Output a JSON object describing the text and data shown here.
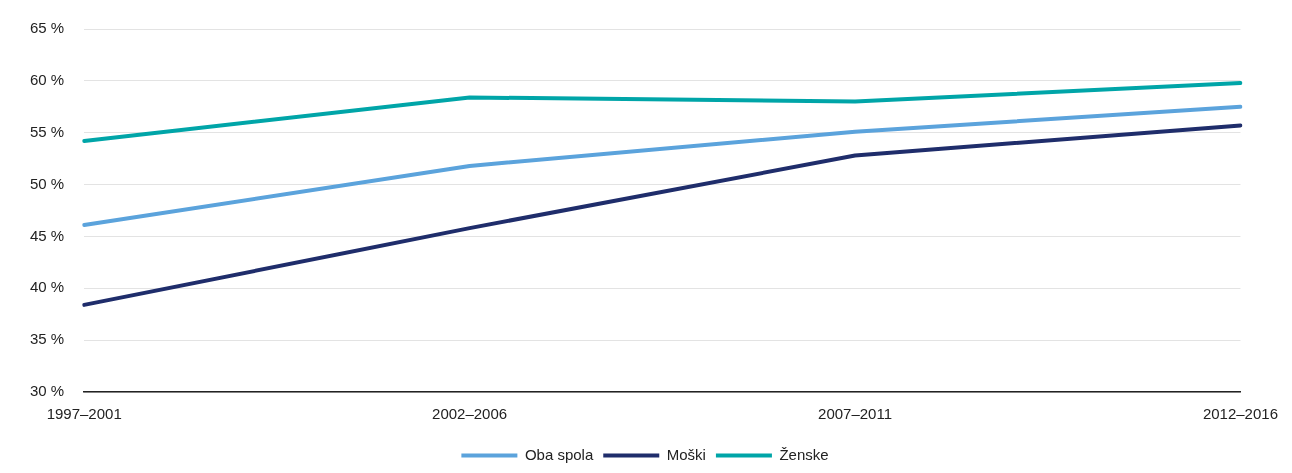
{
  "chart_data": {
    "type": "line",
    "categories": [
      "1997–2001",
      "2002–2006",
      "2007–2011",
      "2012–2016"
    ],
    "series": [
      {
        "name": "Oba spola",
        "color": "#5ba3dc",
        "values": [
          46.1,
          51.8,
          55.1,
          57.5
        ]
      },
      {
        "name": "Moški",
        "color": "#1f2d6b",
        "values": [
          38.4,
          45.8,
          52.8,
          55.7
        ]
      },
      {
        "name": "Ženske",
        "color": "#00a5a8",
        "values": [
          54.2,
          58.4,
          58.0,
          59.8
        ]
      }
    ],
    "ylim": [
      30,
      65
    ],
    "yticks": [
      {
        "value": 30,
        "label": "30 %"
      },
      {
        "value": 35,
        "label": "35 %"
      },
      {
        "value": 40,
        "label": "40 %"
      },
      {
        "value": 45,
        "label": "45 %"
      },
      {
        "value": 50,
        "label": "50 %"
      },
      {
        "value": 55,
        "label": "55 %"
      },
      {
        "value": 60,
        "label": "60 %"
      },
      {
        "value": 65,
        "label": "65 %"
      }
    ],
    "grid": "y",
    "legend": "bottom",
    "marker": "none",
    "line_style": "solid"
  }
}
